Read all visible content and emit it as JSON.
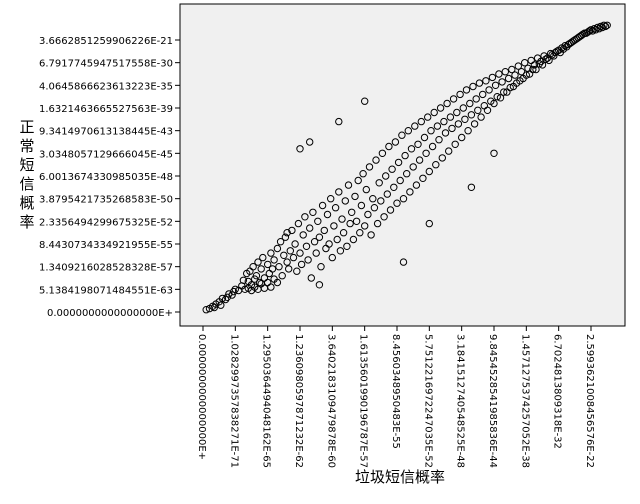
{
  "chart_data": {
    "type": "scatter",
    "title": "",
    "xlabel": "垃圾短信概率",
    "ylabel": "正常短信概率",
    "grid": false,
    "plot_background": "#f0f0f0",
    "marker_color": "#000000",
    "x_tick_labels": [
      "0.0000000000000000E+",
      "1.0282997357838271E-71",
      "1.2950364494048162E-65",
      "1.2360980597871232E-62",
      "3.6402183109479878E-60",
      "1.6135601990196787E-57",
      "8.4560348950483E-55",
      "5.7512216972247035E-52",
      "3.1841512740548525E-48",
      "9.8454528541985836E-44",
      "1.4571275374257052E-38",
      "6.7024813809318E-32",
      "2.5993621008456576E-22"
    ],
    "y_tick_labels": [
      "3.6662851259906226E-21",
      "6.7917745947517558E-30",
      "4.0645866623613223E-35",
      "1.6321463665527563E-39",
      "9.3414970613138445E-43",
      "3.0348057129666045E-45",
      "6.0013674330985035E-48",
      "3.8795421735268583E-50",
      "2.3356494299675325E-52",
      "8.4430734334921955E-55",
      "1.3409216028528328E-57",
      "5.1384198071484551E-63",
      "0.0000000000000000E+"
    ],
    "note_on_values": "x and y are the sample's positions in the rank (tick) scale the axes print: 0 = first tick, 12 = last tick",
    "points": [
      {
        "x": 0.1,
        "y": 0.1
      },
      {
        "x": 0.2,
        "y": 0.15
      },
      {
        "x": 0.3,
        "y": 0.25
      },
      {
        "x": 0.4,
        "y": 0.35
      },
      {
        "x": 0.5,
        "y": 0.45
      },
      {
        "x": 0.6,
        "y": 0.6
      },
      {
        "x": 0.7,
        "y": 0.55
      },
      {
        "x": 0.8,
        "y": 0.8
      },
      {
        "x": 0.9,
        "y": 0.75
      },
      {
        "x": 1.0,
        "y": 1.0
      },
      {
        "x": 0.35,
        "y": 0.2
      },
      {
        "x": 0.55,
        "y": 0.3
      },
      {
        "x": 0.75,
        "y": 0.65
      },
      {
        "x": 0.95,
        "y": 0.9
      },
      {
        "x": 1.1,
        "y": 0.95
      },
      {
        "x": 1.2,
        "y": 1.15
      },
      {
        "x": 1.3,
        "y": 1.0
      },
      {
        "x": 1.4,
        "y": 1.35
      },
      {
        "x": 1.5,
        "y": 1.2
      },
      {
        "x": 1.6,
        "y": 1.45
      },
      {
        "x": 1.25,
        "y": 1.4
      },
      {
        "x": 1.35,
        "y": 1.7
      },
      {
        "x": 1.45,
        "y": 1.8
      },
      {
        "x": 1.55,
        "y": 2.0
      },
      {
        "x": 1.65,
        "y": 1.6
      },
      {
        "x": 1.7,
        "y": 2.2
      },
      {
        "x": 1.75,
        "y": 1.3
      },
      {
        "x": 1.8,
        "y": 1.9
      },
      {
        "x": 1.85,
        "y": 2.4
      },
      {
        "x": 1.9,
        "y": 1.5
      },
      {
        "x": 2.0,
        "y": 2.1
      },
      {
        "x": 2.05,
        "y": 1.7
      },
      {
        "x": 2.1,
        "y": 2.6
      },
      {
        "x": 2.15,
        "y": 1.9
      },
      {
        "x": 2.2,
        "y": 2.3
      },
      {
        "x": 1.4,
        "y": 1.05
      },
      {
        "x": 1.5,
        "y": 0.95
      },
      {
        "x": 1.6,
        "y": 1.1
      },
      {
        "x": 1.7,
        "y": 1.0
      },
      {
        "x": 1.8,
        "y": 1.25
      },
      {
        "x": 1.9,
        "y": 1.05
      },
      {
        "x": 2.0,
        "y": 1.3
      },
      {
        "x": 2.1,
        "y": 1.1
      },
      {
        "x": 2.2,
        "y": 1.45
      },
      {
        "x": 2.3,
        "y": 1.3
      },
      {
        "x": 2.3,
        "y": 2.8
      },
      {
        "x": 2.35,
        "y": 2.0
      },
      {
        "x": 2.4,
        "y": 3.1
      },
      {
        "x": 2.45,
        "y": 1.6
      },
      {
        "x": 2.5,
        "y": 2.5
      },
      {
        "x": 2.55,
        "y": 3.3
      },
      {
        "x": 2.6,
        "y": 2.2
      },
      {
        "x": 2.65,
        "y": 1.9
      },
      {
        "x": 2.7,
        "y": 2.7
      },
      {
        "x": 2.75,
        "y": 3.6
      },
      {
        "x": 2.8,
        "y": 2.4
      },
      {
        "x": 2.85,
        "y": 3.0
      },
      {
        "x": 2.9,
        "y": 1.8
      },
      {
        "x": 2.95,
        "y": 3.9
      },
      {
        "x": 3.0,
        "y": 2.6
      },
      {
        "x": 3.05,
        "y": 2.1
      },
      {
        "x": 3.1,
        "y": 3.4
      },
      {
        "x": 3.15,
        "y": 4.2
      },
      {
        "x": 3.2,
        "y": 2.9
      },
      {
        "x": 3.25,
        "y": 2.3
      },
      {
        "x": 3.3,
        "y": 3.7
      },
      {
        "x": 3.35,
        "y": 1.5
      },
      {
        "x": 3.4,
        "y": 4.4
      },
      {
        "x": 3.45,
        "y": 3.1
      },
      {
        "x": 3.5,
        "y": 2.6
      },
      {
        "x": 3.55,
        "y": 4.0
      },
      {
        "x": 3.6,
        "y": 3.3
      },
      {
        "x": 3.65,
        "y": 2.0
      },
      {
        "x": 3.7,
        "y": 4.7
      },
      {
        "x": 3.75,
        "y": 3.6
      },
      {
        "x": 3.8,
        "y": 2.8
      },
      {
        "x": 3.85,
        "y": 4.3
      },
      {
        "x": 3.9,
        "y": 3.0
      },
      {
        "x": 3.95,
        "y": 5.0
      },
      {
        "x": 4.0,
        "y": 2.4
      },
      {
        "x": 4.05,
        "y": 3.8
      },
      {
        "x": 4.1,
        "y": 4.6
      },
      {
        "x": 4.15,
        "y": 3.2
      },
      {
        "x": 4.2,
        "y": 5.3
      },
      {
        "x": 4.25,
        "y": 2.7
      },
      {
        "x": 4.3,
        "y": 4.1
      },
      {
        "x": 4.35,
        "y": 3.5
      },
      {
        "x": 4.4,
        "y": 4.9
      },
      {
        "x": 4.45,
        "y": 2.9
      },
      {
        "x": 4.5,
        "y": 5.6
      },
      {
        "x": 4.55,
        "y": 3.9
      },
      {
        "x": 4.6,
        "y": 4.4
      },
      {
        "x": 4.65,
        "y": 3.2
      },
      {
        "x": 4.7,
        "y": 5.1
      },
      {
        "x": 4.75,
        "y": 4.0
      },
      {
        "x": 4.8,
        "y": 5.8
      },
      {
        "x": 4.85,
        "y": 3.5
      },
      {
        "x": 4.9,
        "y": 4.7
      },
      {
        "x": 4.95,
        "y": 6.1
      },
      {
        "x": 5.0,
        "y": 3.8
      },
      {
        "x": 5.05,
        "y": 5.4
      },
      {
        "x": 5.1,
        "y": 4.3
      },
      {
        "x": 5.15,
        "y": 6.4
      },
      {
        "x": 5.2,
        "y": 3.4
      },
      {
        "x": 5.25,
        "y": 5.0
      },
      {
        "x": 5.3,
        "y": 4.6
      },
      {
        "x": 5.35,
        "y": 6.7
      },
      {
        "x": 5.4,
        "y": 3.9
      },
      {
        "x": 5.45,
        "y": 5.7
      },
      {
        "x": 5.5,
        "y": 4.9
      },
      {
        "x": 5.55,
        "y": 7.0
      },
      {
        "x": 5.6,
        "y": 4.2
      },
      {
        "x": 5.65,
        "y": 6.0
      },
      {
        "x": 5.7,
        "y": 5.2
      },
      {
        "x": 5.75,
        "y": 7.3
      },
      {
        "x": 5.8,
        "y": 4.5
      },
      {
        "x": 5.85,
        "y": 6.3
      },
      {
        "x": 5.9,
        "y": 5.5
      },
      {
        "x": 5.95,
        "y": 7.5
      },
      {
        "x": 6.0,
        "y": 4.8
      },
      {
        "x": 6.05,
        "y": 6.6
      },
      {
        "x": 6.1,
        "y": 5.8
      },
      {
        "x": 6.15,
        "y": 7.8
      },
      {
        "x": 6.2,
        "y": 5.0
      },
      {
        "x": 6.25,
        "y": 6.9
      },
      {
        "x": 6.3,
        "y": 6.1
      },
      {
        "x": 6.35,
        "y": 8.0
      },
      {
        "x": 6.4,
        "y": 5.3
      },
      {
        "x": 6.45,
        "y": 7.2
      },
      {
        "x": 6.5,
        "y": 6.4
      },
      {
        "x": 6.55,
        "y": 8.2
      },
      {
        "x": 6.6,
        "y": 5.6
      },
      {
        "x": 6.65,
        "y": 7.4
      },
      {
        "x": 6.7,
        "y": 6.7
      },
      {
        "x": 6.75,
        "y": 8.4
      },
      {
        "x": 6.8,
        "y": 5.9
      },
      {
        "x": 6.85,
        "y": 7.7
      },
      {
        "x": 6.9,
        "y": 7.0
      },
      {
        "x": 6.95,
        "y": 8.6
      },
      {
        "x": 7.0,
        "y": 6.2
      },
      {
        "x": 7.05,
        "y": 8.0
      },
      {
        "x": 7.1,
        "y": 7.3
      },
      {
        "x": 7.15,
        "y": 8.8
      },
      {
        "x": 7.2,
        "y": 6.5
      },
      {
        "x": 7.25,
        "y": 8.2
      },
      {
        "x": 7.3,
        "y": 7.6
      },
      {
        "x": 7.35,
        "y": 9.0
      },
      {
        "x": 7.4,
        "y": 6.8
      },
      {
        "x": 7.45,
        "y": 8.4
      },
      {
        "x": 7.5,
        "y": 7.9
      },
      {
        "x": 7.55,
        "y": 9.2
      },
      {
        "x": 7.6,
        "y": 7.1
      },
      {
        "x": 7.65,
        "y": 8.6
      },
      {
        "x": 7.7,
        "y": 8.1
      },
      {
        "x": 7.75,
        "y": 9.4
      },
      {
        "x": 7.8,
        "y": 7.4
      },
      {
        "x": 7.85,
        "y": 8.8
      },
      {
        "x": 7.9,
        "y": 8.3
      },
      {
        "x": 7.95,
        "y": 9.6
      },
      {
        "x": 8.0,
        "y": 7.7
      },
      {
        "x": 8.05,
        "y": 9.0
      },
      {
        "x": 8.1,
        "y": 8.5
      },
      {
        "x": 8.15,
        "y": 9.8
      },
      {
        "x": 8.2,
        "y": 8.0
      },
      {
        "x": 8.25,
        "y": 9.2
      },
      {
        "x": 8.3,
        "y": 8.7
      },
      {
        "x": 8.35,
        "y": 9.95
      },
      {
        "x": 8.4,
        "y": 8.3
      },
      {
        "x": 8.45,
        "y": 9.4
      },
      {
        "x": 8.5,
        "y": 8.9
      },
      {
        "x": 8.55,
        "y": 10.1
      },
      {
        "x": 8.6,
        "y": 8.6
      },
      {
        "x": 8.65,
        "y": 9.6
      },
      {
        "x": 8.7,
        "y": 9.1
      },
      {
        "x": 8.75,
        "y": 10.2
      },
      {
        "x": 8.8,
        "y": 8.9
      },
      {
        "x": 8.85,
        "y": 9.8
      },
      {
        "x": 8.9,
        "y": 9.3
      },
      {
        "x": 8.95,
        "y": 10.35
      },
      {
        "x": 9.0,
        "y": 9.2
      },
      {
        "x": 9.05,
        "y": 10.0
      },
      {
        "x": 9.1,
        "y": 9.5
      },
      {
        "x": 9.15,
        "y": 10.5
      },
      {
        "x": 9.2,
        "y": 9.45
      },
      {
        "x": 9.25,
        "y": 10.15
      },
      {
        "x": 9.3,
        "y": 9.7
      },
      {
        "x": 9.35,
        "y": 10.6
      },
      {
        "x": 9.4,
        "y": 9.7
      },
      {
        "x": 9.45,
        "y": 10.3
      },
      {
        "x": 9.5,
        "y": 9.9
      },
      {
        "x": 9.55,
        "y": 10.7
      },
      {
        "x": 9.6,
        "y": 9.95
      },
      {
        "x": 9.65,
        "y": 10.45
      },
      {
        "x": 9.7,
        "y": 10.1
      },
      {
        "x": 9.75,
        "y": 10.85
      },
      {
        "x": 9.8,
        "y": 10.2
      },
      {
        "x": 9.85,
        "y": 10.6
      },
      {
        "x": 9.9,
        "y": 10.3
      },
      {
        "x": 9.95,
        "y": 11.0
      },
      {
        "x": 10.0,
        "y": 10.45
      },
      {
        "x": 10.05,
        "y": 10.75
      },
      {
        "x": 10.1,
        "y": 10.5
      },
      {
        "x": 10.15,
        "y": 11.1
      },
      {
        "x": 10.2,
        "y": 10.7
      },
      {
        "x": 10.25,
        "y": 10.9
      },
      {
        "x": 10.3,
        "y": 10.7
      },
      {
        "x": 10.35,
        "y": 11.2
      },
      {
        "x": 10.4,
        "y": 10.95
      },
      {
        "x": 10.45,
        "y": 11.05
      },
      {
        "x": 10.5,
        "y": 10.9
      },
      {
        "x": 10.55,
        "y": 11.3
      },
      {
        "x": 10.6,
        "y": 11.15
      },
      {
        "x": 10.65,
        "y": 11.2
      },
      {
        "x": 10.7,
        "y": 11.1
      },
      {
        "x": 10.75,
        "y": 11.4
      },
      {
        "x": 10.8,
        "y": 11.35
      },
      {
        "x": 10.85,
        "y": 11.3
      },
      {
        "x": 10.9,
        "y": 11.45
      },
      {
        "x": 10.95,
        "y": 11.5
      },
      {
        "x": 11.0,
        "y": 11.55
      },
      {
        "x": 11.05,
        "y": 11.45
      },
      {
        "x": 11.1,
        "y": 11.65
      },
      {
        "x": 11.15,
        "y": 11.6
      },
      {
        "x": 11.2,
        "y": 11.75
      },
      {
        "x": 11.25,
        "y": 11.7
      },
      {
        "x": 11.3,
        "y": 11.8
      },
      {
        "x": 11.35,
        "y": 11.85
      },
      {
        "x": 11.4,
        "y": 11.9
      },
      {
        "x": 11.45,
        "y": 11.95
      },
      {
        "x": 11.5,
        "y": 12.0
      },
      {
        "x": 11.55,
        "y": 12.05
      },
      {
        "x": 11.6,
        "y": 12.1
      },
      {
        "x": 11.65,
        "y": 12.15
      },
      {
        "x": 11.7,
        "y": 12.2
      },
      {
        "x": 11.75,
        "y": 12.25
      },
      {
        "x": 11.8,
        "y": 12.3
      },
      {
        "x": 11.85,
        "y": 12.3
      },
      {
        "x": 11.9,
        "y": 12.35
      },
      {
        "x": 11.95,
        "y": 12.4
      },
      {
        "x": 12.0,
        "y": 12.45
      },
      {
        "x": 12.05,
        "y": 12.4
      },
      {
        "x": 12.1,
        "y": 12.5
      },
      {
        "x": 12.15,
        "y": 12.45
      },
      {
        "x": 12.2,
        "y": 12.55
      },
      {
        "x": 12.25,
        "y": 12.5
      },
      {
        "x": 12.3,
        "y": 12.6
      },
      {
        "x": 12.35,
        "y": 12.55
      },
      {
        "x": 12.4,
        "y": 12.65
      },
      {
        "x": 12.45,
        "y": 12.6
      },
      {
        "x": 12.5,
        "y": 12.65
      },
      {
        "x": 3.0,
        "y": 7.2
      },
      {
        "x": 3.3,
        "y": 7.5
      },
      {
        "x": 4.2,
        "y": 8.4
      },
      {
        "x": 5.0,
        "y": 9.3
      },
      {
        "x": 6.2,
        "y": 2.2
      },
      {
        "x": 7.0,
        "y": 3.9
      },
      {
        "x": 8.3,
        "y": 5.5
      },
      {
        "x": 9.0,
        "y": 7.0
      },
      {
        "x": 2.6,
        "y": 3.5
      },
      {
        "x": 3.6,
        "y": 1.2
      }
    ]
  }
}
